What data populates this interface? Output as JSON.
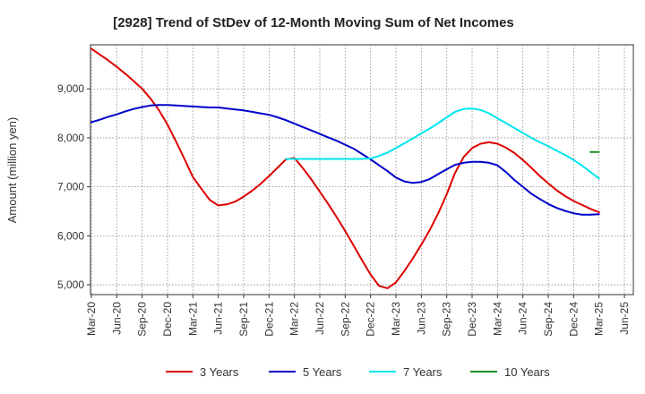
{
  "chart_data": {
    "type": "line",
    "title": "[2928]  Trend of StDev of 12-Month Moving Sum of Net Incomes",
    "xlabel": "",
    "ylabel": "Amount (million yen)",
    "x_tick_labels": [
      "Mar-20",
      "Jun-20",
      "Sep-20",
      "Dec-20",
      "Mar-21",
      "Jun-21",
      "Sep-21",
      "Dec-21",
      "Mar-22",
      "Jun-22",
      "Sep-22",
      "Dec-22",
      "Mar-23",
      "Jun-23",
      "Sep-23",
      "Dec-23",
      "Mar-24",
      "Jun-24",
      "Sep-24",
      "Dec-24",
      "Mar-25",
      "Jun-25"
    ],
    "y_ticks": [
      5000,
      6000,
      7000,
      8000,
      9000
    ],
    "y_tick_labels": [
      "5,000",
      "6,000",
      "7,000",
      "8,000",
      "9,000"
    ],
    "ylim": [
      4800,
      9900
    ],
    "grid": true,
    "legend_position": "bottom",
    "series": [
      {
        "name": "3 Years",
        "color": "#dd0000",
        "x": [
          "Mar-20",
          "Apr-20",
          "May-20",
          "Jun-20",
          "Jul-20",
          "Aug-20",
          "Sep-20",
          "Oct-20",
          "Nov-20",
          "Dec-20",
          "Jan-21",
          "Feb-21",
          "Mar-21",
          "Apr-21",
          "May-21",
          "Jun-21",
          "Jul-21",
          "Aug-21",
          "Sep-21",
          "Oct-21",
          "Nov-21",
          "Dec-21",
          "Jan-22",
          "Feb-22",
          "Mar-22",
          "Apr-22",
          "May-22",
          "Jun-22",
          "Jul-22",
          "Aug-22",
          "Sep-22",
          "Oct-22",
          "Nov-22",
          "Dec-22",
          "Jan-23",
          "Feb-23",
          "Mar-23",
          "Apr-23",
          "May-23",
          "Jun-23",
          "Jul-23",
          "Aug-23",
          "Sep-23",
          "Oct-23",
          "Nov-23",
          "Dec-23",
          "Jan-24",
          "Feb-24",
          "Mar-24",
          "Apr-24",
          "May-24",
          "Jun-24",
          "Jul-24",
          "Aug-24",
          "Sep-24",
          "Oct-24",
          "Nov-24",
          "Dec-24",
          "Jan-25",
          "Feb-25",
          "Mar-25"
        ],
        "values": [
          9820,
          9700,
          9580,
          9450,
          9310,
          9160,
          9000,
          8800,
          8560,
          8270,
          7930,
          7570,
          7200,
          6960,
          6730,
          6620,
          6640,
          6700,
          6800,
          6920,
          7060,
          7220,
          7390,
          7560,
          7590,
          7380,
          7150,
          6900,
          6650,
          6380,
          6100,
          5800,
          5500,
          5210,
          4980,
          4930,
          5050,
          5280,
          5540,
          5820,
          6120,
          6460,
          6850,
          7290,
          7610,
          7790,
          7880,
          7910,
          7880,
          7800,
          7690,
          7550,
          7390,
          7220,
          7070,
          6930,
          6810,
          6710,
          6630,
          6550,
          6480
        ]
      },
      {
        "name": "5 Years",
        "color": "#0000cc",
        "x": [
          "Mar-20",
          "Apr-20",
          "May-20",
          "Jun-20",
          "Jul-20",
          "Aug-20",
          "Sep-20",
          "Oct-20",
          "Nov-20",
          "Dec-20",
          "Jan-21",
          "Feb-21",
          "Mar-21",
          "Apr-21",
          "May-21",
          "Jun-21",
          "Jul-21",
          "Aug-21",
          "Sep-21",
          "Oct-21",
          "Nov-21",
          "Dec-21",
          "Jan-22",
          "Feb-22",
          "Mar-22",
          "Apr-22",
          "May-22",
          "Jun-22",
          "Jul-22",
          "Aug-22",
          "Sep-22",
          "Oct-22",
          "Nov-22",
          "Dec-22",
          "Jan-23",
          "Feb-23",
          "Mar-23",
          "Apr-23",
          "May-23",
          "Jun-23",
          "Jul-23",
          "Aug-23",
          "Sep-23",
          "Oct-23",
          "Nov-23",
          "Dec-23",
          "Jan-24",
          "Feb-24",
          "Mar-24",
          "Apr-24",
          "May-24",
          "Jun-24",
          "Jul-24",
          "Aug-24",
          "Sep-24",
          "Oct-24",
          "Nov-24",
          "Dec-24",
          "Jan-25",
          "Feb-25",
          "Mar-25"
        ],
        "values": [
          8320,
          8370,
          8430,
          8480,
          8540,
          8590,
          8630,
          8660,
          8670,
          8670,
          8660,
          8650,
          8640,
          8630,
          8620,
          8620,
          8600,
          8580,
          8560,
          8530,
          8500,
          8470,
          8420,
          8360,
          8290,
          8220,
          8150,
          8080,
          8010,
          7940,
          7860,
          7780,
          7670,
          7560,
          7440,
          7320,
          7190,
          7110,
          7080,
          7100,
          7160,
          7260,
          7360,
          7450,
          7490,
          7510,
          7510,
          7490,
          7440,
          7300,
          7140,
          7000,
          6860,
          6750,
          6650,
          6570,
          6510,
          6460,
          6430,
          6430,
          6440
        ]
      },
      {
        "name": "7 Years",
        "color": "#00e5ee",
        "x": [
          "Feb-22",
          "Mar-22",
          "Apr-22",
          "May-22",
          "Jun-22",
          "Jul-22",
          "Aug-22",
          "Sep-22",
          "Oct-22",
          "Nov-22",
          "Dec-22",
          "Jan-23",
          "Feb-23",
          "Mar-23",
          "Apr-23",
          "May-23",
          "Jun-23",
          "Jul-23",
          "Aug-23",
          "Sep-23",
          "Oct-23",
          "Nov-23",
          "Dec-23",
          "Jan-24",
          "Feb-24",
          "Mar-24",
          "Apr-24",
          "May-24",
          "Jun-24",
          "Jul-24",
          "Aug-24",
          "Sep-24",
          "Oct-24",
          "Nov-24",
          "Dec-24",
          "Jan-25",
          "Feb-25",
          "Mar-25"
        ],
        "values": [
          7570,
          7570,
          7570,
          7570,
          7570,
          7570,
          7570,
          7570,
          7570,
          7570,
          7580,
          7630,
          7700,
          7790,
          7890,
          7990,
          8090,
          8190,
          8300,
          8420,
          8530,
          8590,
          8600,
          8570,
          8500,
          8400,
          8300,
          8200,
          8100,
          8000,
          7910,
          7830,
          7740,
          7650,
          7550,
          7430,
          7300,
          7170
        ]
      },
      {
        "name": "10 Years",
        "color": "#228b22",
        "x": [
          "Feb-25",
          "Mar-25"
        ],
        "values": [
          7710,
          7710
        ]
      }
    ]
  }
}
